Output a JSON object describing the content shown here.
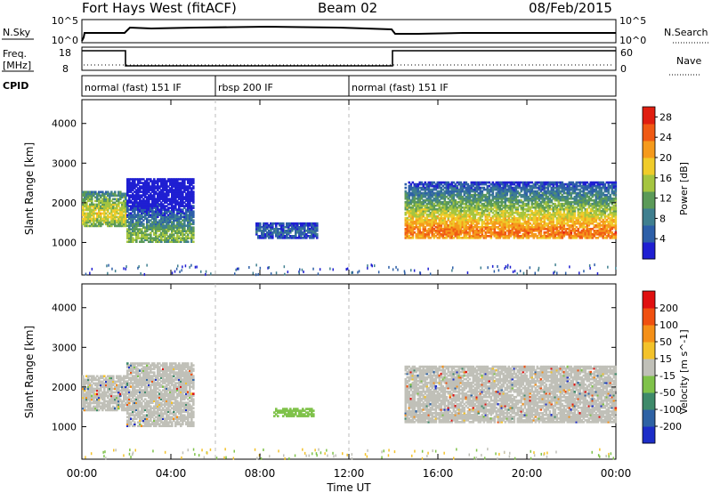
{
  "header": {
    "station": "Fort Hays West (fitACF)",
    "beam": "Beam 02",
    "date": "08/Feb/2015"
  },
  "nsky_panel": {
    "label": "N.Sky",
    "left_ticks": [
      "10^5",
      "10^0"
    ],
    "right_ticks": [
      "10^5",
      "10^0"
    ],
    "right_label": "N.Search"
  },
  "freq_panel": {
    "label_line1": "Freq.",
    "label_line2": "[MHz]",
    "left_ticks": [
      "18",
      "8"
    ],
    "right_ticks": [
      "60",
      "0"
    ],
    "right_label": "Nave"
  },
  "cpid": {
    "label": "CPID",
    "segments": [
      {
        "name": "normal (fast) 151 IF",
        "start_hour": 0,
        "end_hour": 6
      },
      {
        "name": "rbsp 200 IF",
        "start_hour": 6,
        "end_hour": 12
      },
      {
        "name": "normal (fast) 151 IF",
        "start_hour": 12,
        "end_hour": 24
      }
    ]
  },
  "x_axis": {
    "label": "Time UT",
    "ticks": [
      "00:00",
      "04:00",
      "08:00",
      "12:00",
      "16:00",
      "20:00",
      "00:00"
    ]
  },
  "chart_data": [
    {
      "type": "heatmap",
      "parameter": "power",
      "ylabel": "Slant Range [km]",
      "xlim": [
        0,
        24
      ],
      "ylim": [
        180,
        4600
      ],
      "y_ticks": [
        1000,
        2000,
        3000,
        4000
      ],
      "colorbar": {
        "label": "Power [dB]",
        "ticks": [
          "4",
          "8",
          "12",
          "16",
          "20",
          "24",
          "28"
        ],
        "range": [
          0,
          30
        ],
        "colors": [
          "#1f1fd2",
          "#2d5fa8",
          "#3f7f8f",
          "#5b9a58",
          "#a5c540",
          "#f0cc2a",
          "#f59a1c",
          "#f05a14",
          "#e01e10"
        ]
      },
      "regions": [
        {
          "t0": 0.0,
          "t1": 2.0,
          "r0": 1400,
          "r1": 2300,
          "peak": 1700,
          "level": 18
        },
        {
          "t0": 2.0,
          "t1": 5.0,
          "r0": 1000,
          "r1": 2600,
          "peak": 1150,
          "level": 14
        },
        {
          "t0": 7.8,
          "t1": 10.6,
          "r0": 1100,
          "r1": 1500,
          "peak": 1250,
          "level": 6
        },
        {
          "t0": 14.5,
          "t1": 24.0,
          "r0": 1100,
          "r1": 2500,
          "peak": 1250,
          "level": 24
        }
      ]
    },
    {
      "type": "heatmap",
      "parameter": "velocity",
      "ylabel": "Slant Range [km]",
      "xlim": [
        0,
        24
      ],
      "ylim": [
        180,
        4600
      ],
      "y_ticks": [
        1000,
        2000,
        3000,
        4000
      ],
      "colorbar": {
        "label": "Velocity [m s^-1]",
        "ticks": [
          "200",
          "100",
          "50",
          "15",
          "-15",
          "-50",
          "-100",
          "-200"
        ],
        "range": [
          -250,
          250
        ],
        "colors": [
          "#1c2dc8",
          "#2e62a4",
          "#3e8a6a",
          "#7fc24a",
          "#c0c0b8",
          "#f3c22a",
          "#f59018",
          "#f05010",
          "#e01010"
        ]
      },
      "regions": [
        {
          "t0": 0.0,
          "t1": 2.0,
          "r0": 1400,
          "r1": 2300,
          "velocity": 0
        },
        {
          "t0": 2.0,
          "t1": 5.0,
          "r0": 1000,
          "r1": 2600,
          "velocity": 0
        },
        {
          "t0": 8.6,
          "t1": 10.4,
          "r0": 1250,
          "r1": 1450,
          "velocity": -60
        },
        {
          "t0": 14.5,
          "t1": 24.0,
          "r0": 1100,
          "r1": 2500,
          "velocity": 0
        }
      ]
    }
  ]
}
